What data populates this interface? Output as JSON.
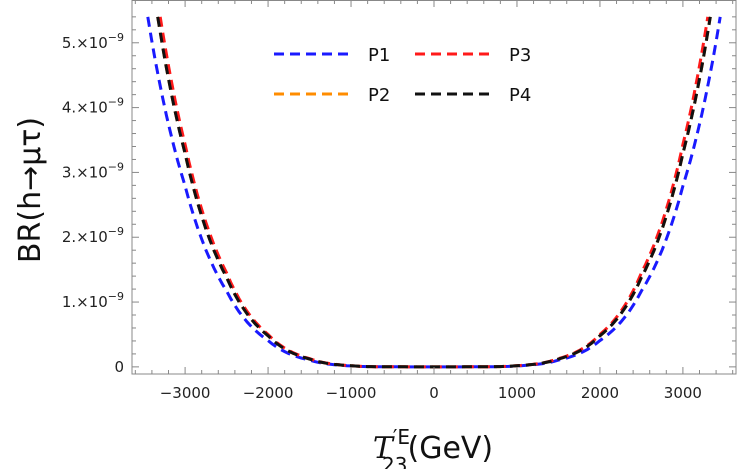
{
  "chart_data": {
    "type": "line",
    "xlabel": "T'^E_23(GeV)",
    "xlabel_parts": {
      "base": "T",
      "prime": "′",
      "sup": "E",
      "sub": "23",
      "unit": "(GeV)"
    },
    "ylabel": "BR(h→μτ)",
    "xlim": [
      -3640,
      3640
    ],
    "ylim": [
      -1.1e-10,
      5.66e-09
    ],
    "grid": false,
    "legend": "top-center",
    "x_ticks": [
      -3000,
      -2000,
      -1000,
      0,
      1000,
      2000,
      3000
    ],
    "x_tick_labels": [
      "-3000",
      "-2000",
      "-1000",
      "0",
      "1000",
      "2000",
      "3000"
    ],
    "y_ticks": [
      0,
      1e-09,
      2e-09,
      3e-09,
      4e-09,
      5e-09
    ],
    "y_tick_labels": [
      {
        "mant": "0",
        "exp": ""
      },
      {
        "mant": "1.×10",
        "exp": "-9"
      },
      {
        "mant": "2.×10",
        "exp": "-9"
      },
      {
        "mant": "3.×10",
        "exp": "-9"
      },
      {
        "mant": "4.×10",
        "exp": "-9"
      },
      {
        "mant": "5.×10",
        "exp": "-9"
      }
    ],
    "series": [
      {
        "name": "P1",
        "color": "#1a1aff",
        "x": [
          -3450,
          -3000,
          -2500,
          -2000,
          -1500,
          -1000,
          -500,
          0,
          500,
          1000,
          1500,
          2000,
          2500,
          3000,
          3450
        ],
        "y": [
          5.4e-09,
          2.79e-09,
          1.17e-09,
          4.06e-10,
          1.04e-10,
          1.5e-11,
          6e-13,
          0,
          6e-13,
          1.5e-11,
          1.04e-10,
          4.06e-10,
          1.17e-09,
          2.79e-09,
          5.4e-09
        ]
      },
      {
        "name": "P2",
        "color": "#ff8c00",
        "x": [
          -3330,
          -3000,
          -2500,
          -2000,
          -1500,
          -1000,
          -500,
          0,
          500,
          1000,
          1500,
          2000,
          2500,
          3000,
          3330
        ],
        "y": [
          5.4e-09,
          3.29e-09,
          1.38e-09,
          4.8e-10,
          1.22e-10,
          1.8e-11,
          7e-13,
          0,
          7e-13,
          1.8e-11,
          1.22e-10,
          4.8e-10,
          1.38e-09,
          3.29e-09,
          5.4e-09
        ]
      },
      {
        "name": "P3",
        "color": "#ff1a1a",
        "x": [
          -3300,
          -3000,
          -2500,
          -2000,
          -1500,
          -1000,
          -500,
          0,
          500,
          1000,
          1500,
          2000,
          2500,
          3000,
          3300
        ],
        "y": [
          5.4e-09,
          3.43e-09,
          1.45e-09,
          5e-10,
          1.28e-10,
          1.9e-11,
          7e-13,
          0,
          7e-13,
          1.9e-11,
          1.28e-10,
          5e-10,
          1.45e-09,
          3.43e-09,
          5.4e-09
        ]
      },
      {
        "name": "P4",
        "color": "#111111",
        "x": [
          -3330,
          -3000,
          -2500,
          -2000,
          -1500,
          -1000,
          -500,
          0,
          500,
          1000,
          1500,
          2000,
          2500,
          3000,
          3330
        ],
        "y": [
          5.4e-09,
          3.29e-09,
          1.38e-09,
          4.8e-10,
          1.22e-10,
          1.8e-11,
          7e-13,
          0,
          7e-13,
          1.8e-11,
          1.22e-10,
          4.8e-10,
          1.38e-09,
          3.29e-09,
          5.4e-09
        ]
      }
    ]
  }
}
